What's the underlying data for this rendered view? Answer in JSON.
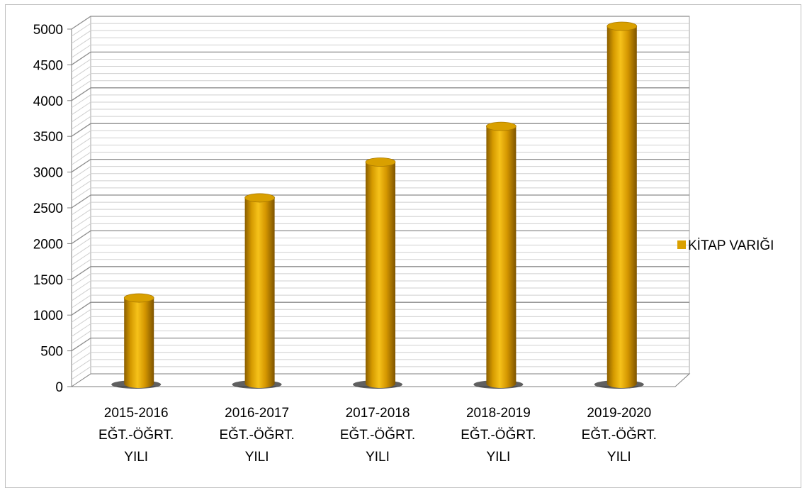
{
  "chart_data": {
    "type": "bar",
    "style": "3d-cylinder",
    "categories": [
      [
        "2015-2016",
        "EĞT.-ÖĞRT.",
        "YILI"
      ],
      [
        "2016-2017",
        "EĞT.-ÖĞRT.",
        "YILI"
      ],
      [
        "2017-2018",
        "EĞT.-ÖĞRT.",
        "YILI"
      ],
      [
        "2018-2019",
        "EĞT.-ÖĞRT.",
        "YILI"
      ],
      [
        "2019-2020",
        "EĞT.-ÖĞRT.",
        "YILI"
      ]
    ],
    "series": [
      {
        "name": "KİTAP VARIĞI",
        "values": [
          1200,
          2600,
          3100,
          3600,
          5000
        ],
        "color": "#DAA000"
      }
    ],
    "ylim": [
      0,
      5000
    ],
    "yticks": [
      "0",
      "500",
      "1000",
      "1500",
      "2000",
      "2500",
      "3000",
      "3500",
      "4000",
      "4500",
      "5000"
    ],
    "ytick_values": [
      0,
      500,
      1000,
      1500,
      2000,
      2500,
      3000,
      3500,
      4000,
      4500,
      5000
    ],
    "grid": true,
    "legend_position": "right"
  }
}
